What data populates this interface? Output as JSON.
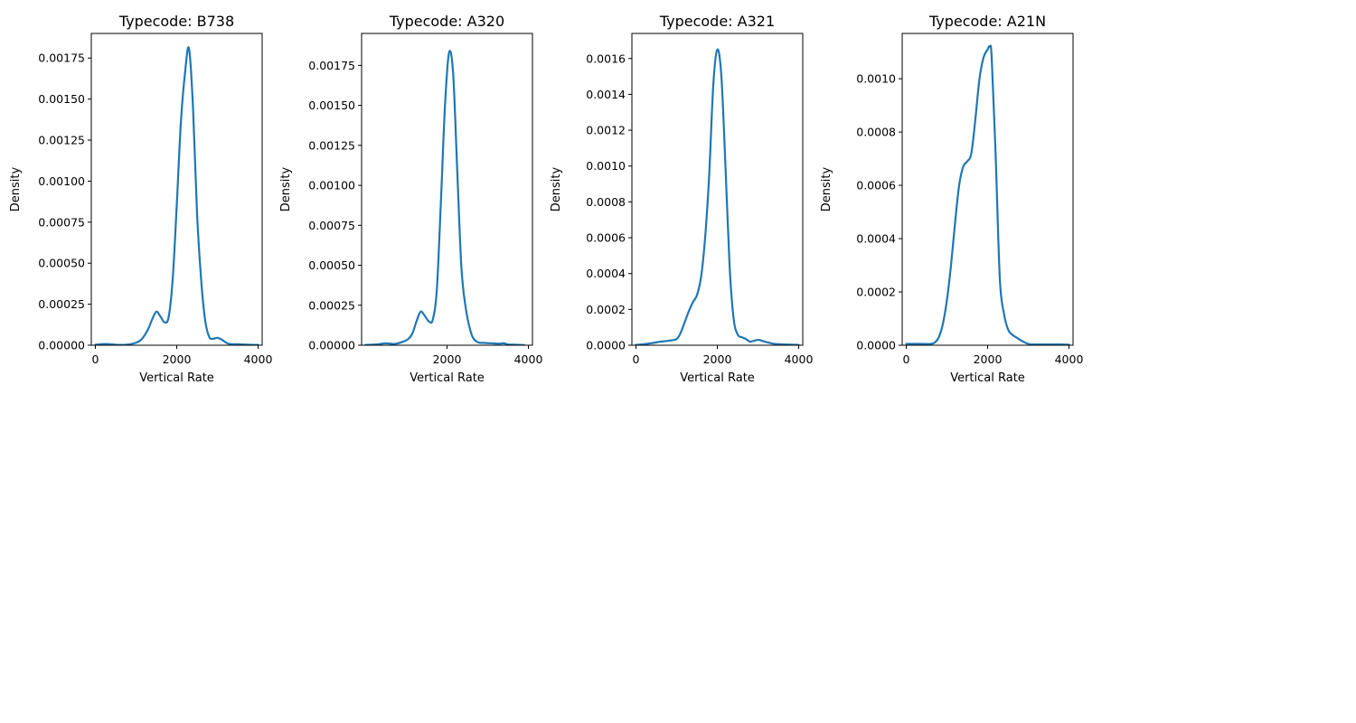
{
  "figure": {
    "background": "#ffffff"
  },
  "chart_data": [
    {
      "type": "line",
      "title": "Typecode: B738",
      "xlabel": "Vertical Rate",
      "ylabel": "Density",
      "xlim": [
        -100,
        4100
      ],
      "ylim": [
        0,
        0.0019
      ],
      "xticks": [
        0,
        2000,
        4000
      ],
      "xtick_labels": [
        "0",
        "2000",
        "4000"
      ],
      "yticks": [
        0,
        0.00025,
        0.0005,
        0.00075,
        0.001,
        0.00125,
        0.0015,
        0.00175
      ],
      "ytick_labels": [
        "0.00000",
        "0.00025",
        "0.00050",
        "0.00075",
        "0.00100",
        "0.00125",
        "0.00150",
        "0.00175"
      ],
      "grid": false,
      "color": "#1f77b4",
      "series": [
        {
          "x": [
            0,
            250,
            500,
            750,
            1000,
            1150,
            1300,
            1400,
            1500,
            1600,
            1700,
            1800,
            1900,
            2000,
            2100,
            2200,
            2300,
            2400,
            2500,
            2600,
            2700,
            2800,
            2900,
            3000,
            3100,
            3200,
            3300,
            3500,
            3800,
            4000
          ],
          "y": [
            3e-06,
            8e-06,
            3e-06,
            3e-06,
            1.5e-05,
            4e-05,
            0.0001,
            0.00016,
            0.000205,
            0.000175,
            0.00014,
            0.00017,
            0.0004,
            0.00085,
            0.00135,
            0.00165,
            0.00181,
            0.00145,
            0.0008,
            0.0004,
            0.00015,
            5e-05,
            4e-05,
            4.5e-05,
            3.5e-05,
            1.8e-05,
            8e-06,
            6e-06,
            3e-06,
            2e-06
          ]
        }
      ]
    },
    {
      "type": "line",
      "title": "Typecode: A320",
      "xlabel": "Vertical Rate",
      "ylabel": "Density",
      "xlim": [
        -100,
        4100
      ],
      "ylim": [
        0,
        0.00195
      ],
      "xticks": [
        2000,
        4000
      ],
      "xtick_labels": [
        "2000",
        "4000"
      ],
      "yticks": [
        0,
        0.00025,
        0.0005,
        0.00075,
        0.001,
        0.00125,
        0.0015,
        0.00175
      ],
      "ytick_labels": [
        "0.00000",
        "0.00025",
        "0.00050",
        "0.00075",
        "0.00100",
        "0.00125",
        "0.00150",
        "0.00175"
      ],
      "grid": false,
      "color": "#1f77b4",
      "series": [
        {
          "x": [
            0,
            250,
            500,
            700,
            900,
            1050,
            1150,
            1250,
            1350,
            1450,
            1550,
            1650,
            1750,
            1850,
            1950,
            2050,
            2150,
            2250,
            2350,
            2450,
            2600,
            2750,
            2900,
            3100,
            3300,
            3400,
            3500,
            3700,
            3900
          ],
          "y": [
            2e-06,
            5e-06,
            1.2e-05,
            8e-06,
            2e-05,
            4e-05,
            7.5e-05,
            0.00015,
            0.00021,
            0.000185,
            0.00015,
            0.00016,
            0.00035,
            0.0009,
            0.0015,
            0.00183,
            0.0017,
            0.0011,
            0.0005,
            0.00025,
            7e-05,
            2e-05,
            1.5e-05,
            1.2e-05,
            1e-05,
            1.2e-05,
            5e-06,
            3e-06,
            1e-06
          ]
        }
      ]
    },
    {
      "type": "line",
      "title": "Typecode: A321",
      "xlabel": "Vertical Rate",
      "ylabel": "Density",
      "xlim": [
        -100,
        4100
      ],
      "ylim": [
        0,
        0.00174
      ],
      "xticks": [
        0,
        2000,
        4000
      ],
      "xtick_labels": [
        "0",
        "2000",
        "4000"
      ],
      "yticks": [
        0,
        0.0002,
        0.0004,
        0.0006,
        0.0008,
        0.001,
        0.0012,
        0.0014,
        0.0016
      ],
      "ytick_labels": [
        "0.0000",
        "0.0002",
        "0.0004",
        "0.0006",
        "0.0008",
        "0.0010",
        "0.0012",
        "0.0014",
        "0.0016"
      ],
      "grid": false,
      "color": "#1f77b4",
      "series": [
        {
          "x": [
            0,
            200,
            400,
            600,
            800,
            1000,
            1100,
            1200,
            1300,
            1400,
            1500,
            1600,
            1700,
            1800,
            1900,
            2000,
            2100,
            2200,
            2300,
            2400,
            2500,
            2600,
            2700,
            2800,
            2900,
            3000,
            3100,
            3200,
            3400,
            3600,
            3800,
            4000
          ],
          "y": [
            2e-06,
            6e-06,
            1.2e-05,
            2e-05,
            2.5e-05,
            3.5e-05,
            7e-05,
            0.00013,
            0.00019,
            0.00024,
            0.00028,
            0.00038,
            0.0006,
            0.00095,
            0.00145,
            0.00165,
            0.0015,
            0.001,
            0.00045,
            0.00015,
            6e-05,
            4.5e-05,
            3.5e-05,
            2e-05,
            2.5e-05,
            3e-05,
            2.5e-05,
            1.8e-05,
            8e-06,
            5e-06,
            3e-06,
            2e-06
          ]
        }
      ]
    },
    {
      "type": "line",
      "title": "Typecode: A21N",
      "xlabel": "Vertical Rate",
      "ylabel": "Density",
      "xlim": [
        -100,
        4100
      ],
      "ylim": [
        0,
        0.00117
      ],
      "xticks": [
        0,
        2000,
        4000
      ],
      "xtick_labels": [
        "0",
        "2000",
        "4000"
      ],
      "yticks": [
        0,
        0.0002,
        0.0004,
        0.0006,
        0.0008,
        0.001
      ],
      "ytick_labels": [
        "0.0000",
        "0.0002",
        "0.0004",
        "0.0006",
        "0.0008",
        "0.0010"
      ],
      "grid": false,
      "color": "#1f77b4",
      "series": [
        {
          "x": [
            0,
            200,
            400,
            600,
            700,
            800,
            900,
            1000,
            1100,
            1200,
            1300,
            1400,
            1500,
            1600,
            1700,
            1800,
            1900,
            2000,
            2050,
            2100,
            2200,
            2300,
            2400,
            2500,
            2600,
            2700,
            2800,
            3000,
            3200,
            3500,
            3800,
            4000
          ],
          "y": [
            5e-06,
            5e-06,
            5e-06,
            5e-06,
            1e-05,
            3e-05,
            8e-05,
            0.00017,
            0.0003,
            0.00046,
            0.0006,
            0.00067,
            0.00069,
            0.00072,
            0.00085,
            0.001,
            0.00108,
            0.00111,
            0.00112,
            0.00108,
            0.0007,
            0.00025,
            0.00012,
            6e-05,
            4e-05,
            3e-05,
            2e-05,
            5e-06,
            3e-06,
            3e-06,
            3e-06,
            2e-06
          ]
        }
      ]
    }
  ]
}
